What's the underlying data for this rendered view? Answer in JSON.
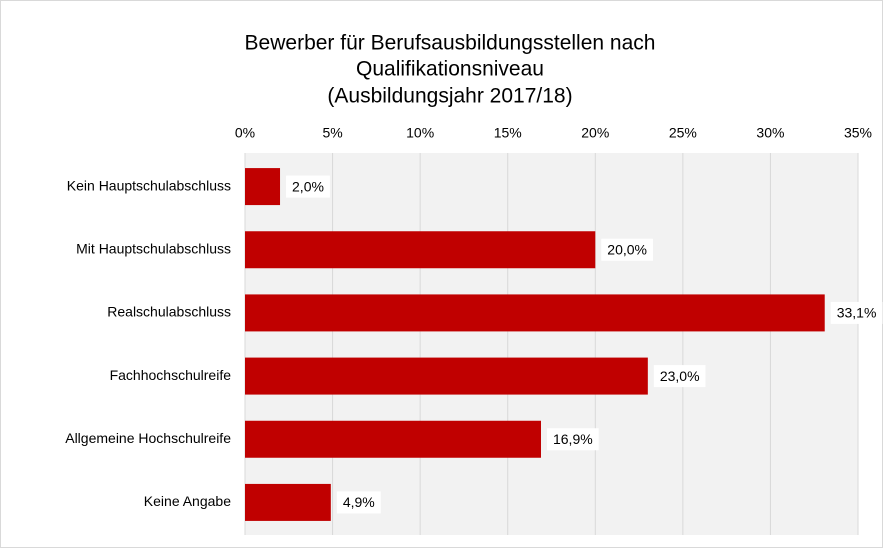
{
  "chart_data": {
    "type": "bar",
    "orientation": "horizontal",
    "title": [
      "Bewerber für Berufsausbildungsstellen nach",
      "Qualifikationsniveau",
      "(Ausbildungsjahr 2017/18)"
    ],
    "categories": [
      "Kein Hauptschulabschluss",
      "Mit Hauptschulabschluss",
      "Realschulabschluss",
      "Fachhochschulreife",
      "Allgemeine Hochschulreife",
      "Keine Angabe"
    ],
    "values": [
      2.0,
      20.0,
      33.1,
      23.0,
      16.9,
      4.9
    ],
    "value_labels": [
      "2,0%",
      "20,0%",
      "33,1%",
      "23,0%",
      "16,9%",
      "4,9%"
    ],
    "color": "#c00000",
    "xlim": [
      0,
      35
    ],
    "xticks": [
      {
        "value": 0,
        "label": "0%"
      },
      {
        "value": 5,
        "label": "5%"
      },
      {
        "value": 10,
        "label": "10%"
      },
      {
        "value": 15,
        "label": "15%"
      },
      {
        "value": 20,
        "label": "20%"
      },
      {
        "value": 25,
        "label": "25%"
      },
      {
        "value": 30,
        "label": "30%"
      },
      {
        "value": 35,
        "label": "35%"
      }
    ],
    "grid": true
  }
}
